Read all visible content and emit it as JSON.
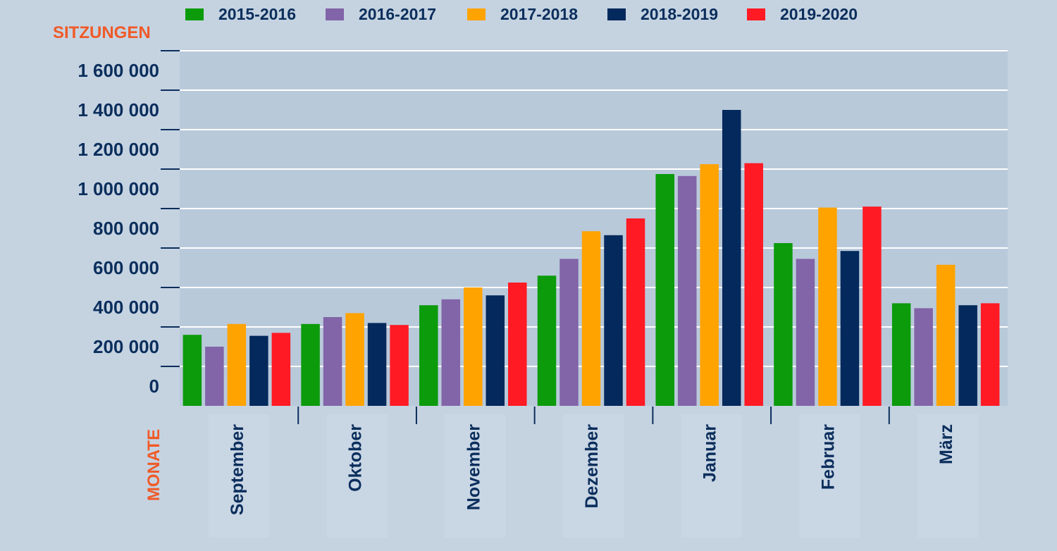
{
  "chart_data": {
    "type": "bar",
    "ylabel": "SITZUNGEN",
    "xlabel": "MONATE",
    "categories": [
      "September",
      "Oktober",
      "November",
      "Dezember",
      "Januar",
      "Februar",
      "März"
    ],
    "y_ticks": [
      {
        "value": 0,
        "label": "0"
      },
      {
        "value": 200000,
        "label": "200 000"
      },
      {
        "value": 400000,
        "label": "400 000"
      },
      {
        "value": 600000,
        "label": "600 000"
      },
      {
        "value": 800000,
        "label": "800 000"
      },
      {
        "value": 1000000,
        "label": "1 000 000"
      },
      {
        "value": 1200000,
        "label": "1 200 000"
      },
      {
        "value": 1400000,
        "label": "1 400 000"
      },
      {
        "value": 1600000,
        "label": "1 600 000"
      }
    ],
    "ylim": [
      -100000,
      1700000
    ],
    "grid": true,
    "legend_position": "top",
    "series": [
      {
        "name": "2015-2016",
        "color": "#0b9b0b",
        "values": [
          160000,
          215000,
          310000,
          460000,
          975000,
          625000,
          320000
        ]
      },
      {
        "name": "2016-2017",
        "color": "#8264a8",
        "values": [
          100000,
          250000,
          340000,
          545000,
          965000,
          545000,
          295000
        ]
      },
      {
        "name": "2017-2018",
        "color": "#ffa300",
        "values": [
          215000,
          270000,
          400000,
          685000,
          1025000,
          805000,
          515000
        ]
      },
      {
        "name": "2018-2019",
        "color": "#04295c",
        "values": [
          155000,
          220000,
          360000,
          665000,
          1300000,
          585000,
          310000
        ]
      },
      {
        "name": "2019-2020",
        "color": "#ff1a24",
        "values": [
          170000,
          210000,
          425000,
          750000,
          1030000,
          810000,
          320000
        ]
      }
    ]
  }
}
